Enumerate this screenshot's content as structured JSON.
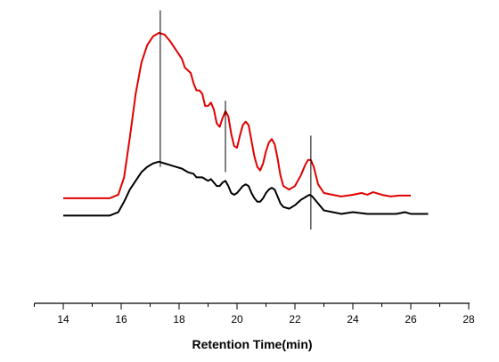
{
  "chart_data": {
    "type": "line",
    "title": "",
    "xlabel": "Retention Time(min)",
    "ylabel": "",
    "xlim": [
      13,
      28
    ],
    "ylim": [
      0,
      1.25
    ],
    "x_ticks": [
      14,
      16,
      18,
      20,
      22,
      24,
      26,
      28
    ],
    "x_tick_labels": [
      "14",
      "16",
      "18",
      "20",
      "22",
      "24",
      "26",
      "28"
    ],
    "y_axis_visible": false,
    "grid": false,
    "legend": "none",
    "series": [
      {
        "color": "#e00000",
        "points": [
          [
            14.0,
            0.2
          ],
          [
            15.0,
            0.2
          ],
          [
            15.6,
            0.2
          ],
          [
            15.9,
            0.22
          ],
          [
            16.1,
            0.32
          ],
          [
            16.3,
            0.55
          ],
          [
            16.5,
            0.8
          ],
          [
            16.7,
            0.98
          ],
          [
            16.9,
            1.08
          ],
          [
            17.1,
            1.13
          ],
          [
            17.3,
            1.15
          ],
          [
            17.5,
            1.14
          ],
          [
            17.7,
            1.1
          ],
          [
            17.9,
            1.05
          ],
          [
            18.1,
            1.0
          ],
          [
            18.2,
            0.95
          ],
          [
            18.4,
            0.92
          ],
          [
            18.5,
            0.86
          ],
          [
            18.6,
            0.82
          ],
          [
            18.7,
            0.82
          ],
          [
            18.8,
            0.8
          ],
          [
            18.9,
            0.73
          ],
          [
            19.0,
            0.73
          ],
          [
            19.1,
            0.75
          ],
          [
            19.2,
            0.71
          ],
          [
            19.3,
            0.63
          ],
          [
            19.4,
            0.61
          ],
          [
            19.5,
            0.66
          ],
          [
            19.6,
            0.7
          ],
          [
            19.7,
            0.67
          ],
          [
            19.8,
            0.57
          ],
          [
            19.9,
            0.5
          ],
          [
            20.0,
            0.49
          ],
          [
            20.1,
            0.56
          ],
          [
            20.2,
            0.62
          ],
          [
            20.3,
            0.64
          ],
          [
            20.4,
            0.62
          ],
          [
            20.5,
            0.53
          ],
          [
            20.6,
            0.44
          ],
          [
            20.7,
            0.38
          ],
          [
            20.8,
            0.36
          ],
          [
            20.9,
            0.4
          ],
          [
            21.0,
            0.47
          ],
          [
            21.1,
            0.52
          ],
          [
            21.2,
            0.54
          ],
          [
            21.3,
            0.51
          ],
          [
            21.4,
            0.43
          ],
          [
            21.5,
            0.33
          ],
          [
            21.6,
            0.27
          ],
          [
            21.8,
            0.25
          ],
          [
            22.0,
            0.27
          ],
          [
            22.2,
            0.33
          ],
          [
            22.35,
            0.39
          ],
          [
            22.45,
            0.42
          ],
          [
            22.55,
            0.42
          ],
          [
            22.65,
            0.38
          ],
          [
            22.8,
            0.28
          ],
          [
            23.0,
            0.23
          ],
          [
            23.3,
            0.22
          ],
          [
            23.6,
            0.21
          ],
          [
            24.0,
            0.22
          ],
          [
            24.3,
            0.23
          ],
          [
            24.5,
            0.22
          ],
          [
            24.7,
            0.235
          ],
          [
            25.0,
            0.22
          ],
          [
            25.3,
            0.21
          ],
          [
            25.6,
            0.215
          ],
          [
            26.0,
            0.215
          ]
        ]
      },
      {
        "color": "#000000",
        "points": [
          [
            14.0,
            0.1
          ],
          [
            15.0,
            0.1
          ],
          [
            15.6,
            0.1
          ],
          [
            15.9,
            0.12
          ],
          [
            16.1,
            0.18
          ],
          [
            16.3,
            0.25
          ],
          [
            16.5,
            0.3
          ],
          [
            16.7,
            0.35
          ],
          [
            16.9,
            0.38
          ],
          [
            17.1,
            0.4
          ],
          [
            17.3,
            0.41
          ],
          [
            17.5,
            0.4
          ],
          [
            17.7,
            0.39
          ],
          [
            17.9,
            0.38
          ],
          [
            18.1,
            0.37
          ],
          [
            18.3,
            0.35
          ],
          [
            18.5,
            0.34
          ],
          [
            18.6,
            0.32
          ],
          [
            18.8,
            0.32
          ],
          [
            18.9,
            0.31
          ],
          [
            19.0,
            0.3
          ],
          [
            19.1,
            0.31
          ],
          [
            19.2,
            0.29
          ],
          [
            19.3,
            0.27
          ],
          [
            19.4,
            0.27
          ],
          [
            19.5,
            0.29
          ],
          [
            19.6,
            0.3
          ],
          [
            19.7,
            0.27
          ],
          [
            19.8,
            0.23
          ],
          [
            19.9,
            0.22
          ],
          [
            20.0,
            0.23
          ],
          [
            20.1,
            0.25
          ],
          [
            20.2,
            0.27
          ],
          [
            20.3,
            0.28
          ],
          [
            20.4,
            0.27
          ],
          [
            20.5,
            0.23
          ],
          [
            20.6,
            0.2
          ],
          [
            20.7,
            0.18
          ],
          [
            20.8,
            0.18
          ],
          [
            20.9,
            0.2
          ],
          [
            21.0,
            0.23
          ],
          [
            21.1,
            0.25
          ],
          [
            21.2,
            0.26
          ],
          [
            21.3,
            0.25
          ],
          [
            21.4,
            0.21
          ],
          [
            21.5,
            0.17
          ],
          [
            21.6,
            0.15
          ],
          [
            21.8,
            0.14
          ],
          [
            22.0,
            0.16
          ],
          [
            22.2,
            0.19
          ],
          [
            22.4,
            0.21
          ],
          [
            22.5,
            0.22
          ],
          [
            22.6,
            0.21
          ],
          [
            22.8,
            0.17
          ],
          [
            23.0,
            0.13
          ],
          [
            23.3,
            0.12
          ],
          [
            23.6,
            0.11
          ],
          [
            24.0,
            0.12
          ],
          [
            24.5,
            0.11
          ],
          [
            25.0,
            0.11
          ],
          [
            25.5,
            0.11
          ],
          [
            25.8,
            0.12
          ],
          [
            26.0,
            0.11
          ],
          [
            26.3,
            0.11
          ],
          [
            26.6,
            0.11
          ]
        ]
      }
    ],
    "reference_lines": [
      {
        "x": 17.35,
        "y_from": 0.38,
        "y_to": 1.28
      },
      {
        "x": 19.6,
        "y_from": 0.35,
        "y_to": 0.76
      },
      {
        "x": 22.55,
        "y_from": 0.02,
        "y_to": 0.56
      }
    ]
  }
}
